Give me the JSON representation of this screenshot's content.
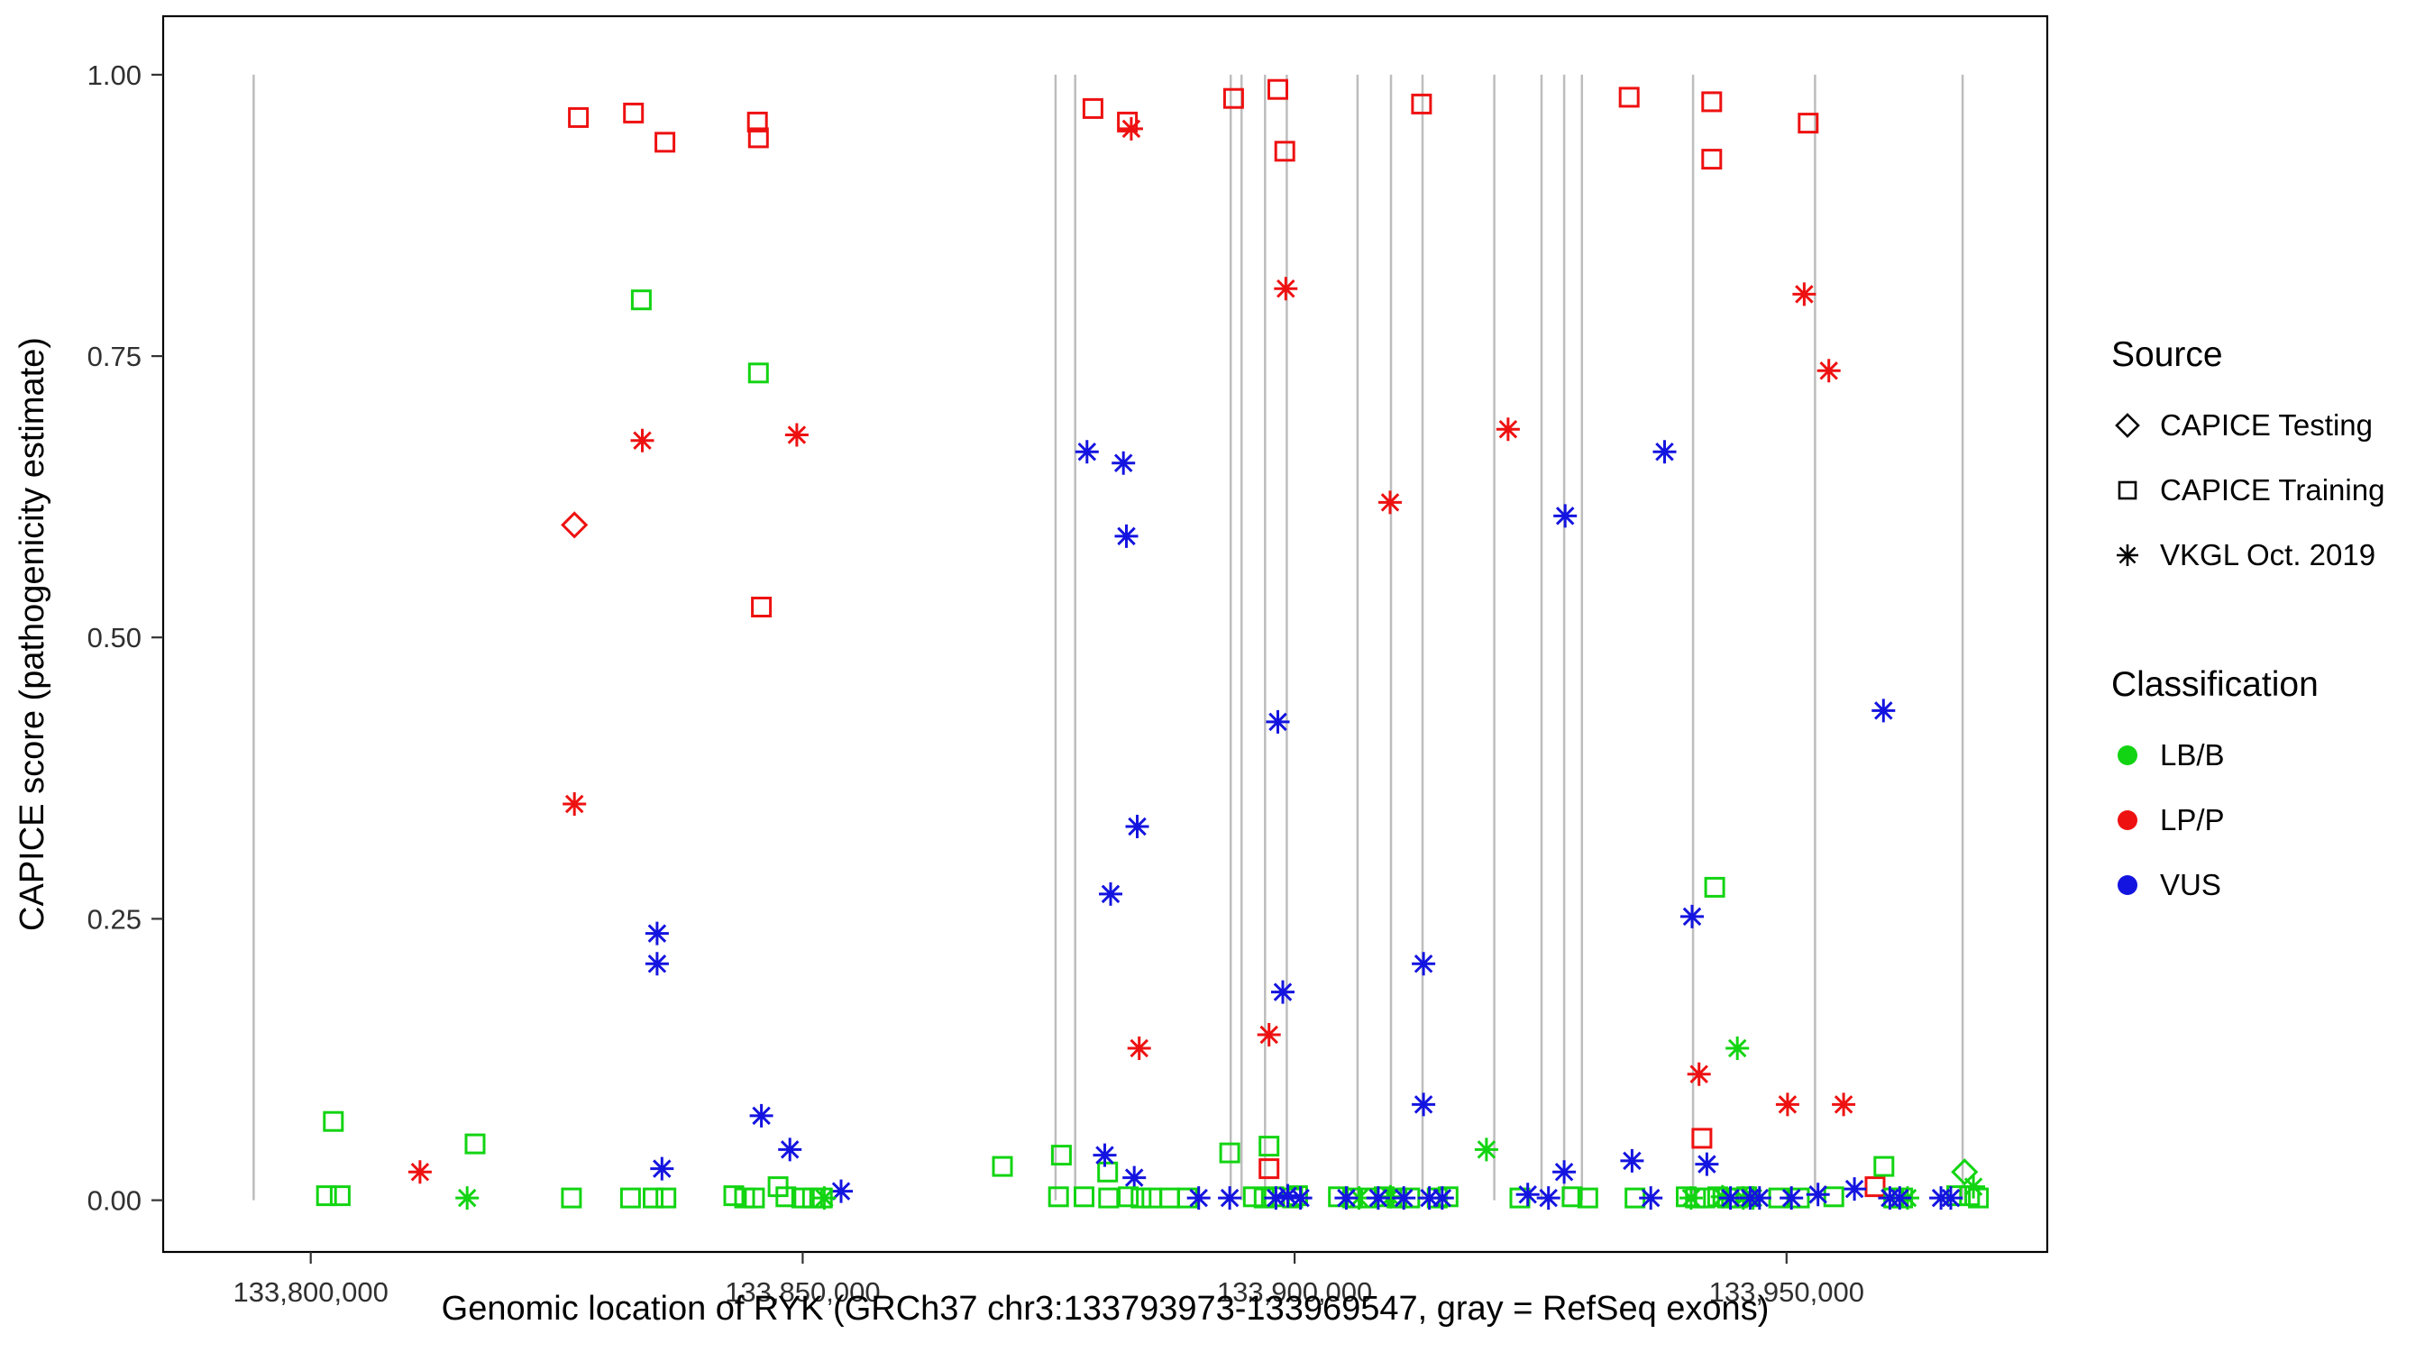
{
  "figure": {
    "colors": {
      "lbb": "#12d412",
      "lpp": "#ee1111",
      "vus": "#1414e0",
      "exon": "#bdbdbd",
      "axis_text": "#303030",
      "title_text": "#000000"
    }
  },
  "chart_data": {
    "type": "scatter",
    "title": "",
    "xlabel": "Genomic location of RYK (GRCh37 chr3:133793973-133969547, gray = RefSeq exons)",
    "ylabel": "CAPICE score (pathogenicity estimate)",
    "xlim": [
      133785000,
      133976500
    ],
    "ylim": [
      -0.046,
      1.052
    ],
    "grid": "off",
    "legend_position": "right",
    "x_ticks": [
      {
        "value": 133800000,
        "label": "133,800,000"
      },
      {
        "value": 133850000,
        "label": "133,850,000"
      },
      {
        "value": 133900000,
        "label": "133,900,000"
      },
      {
        "value": 133950000,
        "label": "133,950,000"
      }
    ],
    "y_ticks": [
      {
        "value": 0.0,
        "label": "0.00"
      },
      {
        "value": 0.25,
        "label": "0.25"
      },
      {
        "value": 0.5,
        "label": "0.50"
      },
      {
        "value": 0.75,
        "label": "0.75"
      },
      {
        "value": 1.0,
        "label": "1.00"
      }
    ],
    "exon_lines": [
      133794200,
      133875700,
      133877700,
      133893500,
      133894600,
      133897000,
      133899200,
      133906400,
      133909800,
      133913000,
      133920300,
      133925100,
      133927400,
      133929200,
      133940500,
      133952900,
      133967900
    ],
    "legend": {
      "source": {
        "title": "Source",
        "items": [
          {
            "label": "CAPICE Testing",
            "marker": "diamond"
          },
          {
            "label": "CAPICE Training",
            "marker": "square"
          },
          {
            "label": "VKGL Oct. 2019",
            "marker": "asterisk"
          }
        ]
      },
      "classification": {
        "title": "Classification",
        "items": [
          {
            "label": "LB/B",
            "color_key": "lbb"
          },
          {
            "label": "LP/P",
            "color_key": "lpp"
          },
          {
            "label": "VUS",
            "color_key": "vus"
          }
        ]
      }
    },
    "points_format": [
      "genomic_position",
      "capice_score",
      "source",
      "classification"
    ],
    "points": [
      [
        133827200,
        0.962,
        "training",
        "lpp"
      ],
      [
        133832800,
        0.966,
        "training",
        "lpp"
      ],
      [
        133836000,
        0.94,
        "training",
        "lpp"
      ],
      [
        133845400,
        0.958,
        "training",
        "lpp"
      ],
      [
        133845500,
        0.944,
        "training",
        "lpp"
      ],
      [
        133879500,
        0.97,
        "training",
        "lpp"
      ],
      [
        133883000,
        0.958,
        "training",
        "lpp"
      ],
      [
        133893800,
        0.979,
        "training",
        "lpp"
      ],
      [
        133898300,
        0.987,
        "training",
        "lpp"
      ],
      [
        133899000,
        0.932,
        "training",
        "lpp"
      ],
      [
        133912900,
        0.974,
        "training",
        "lpp"
      ],
      [
        133934000,
        0.98,
        "training",
        "lpp"
      ],
      [
        133942400,
        0.976,
        "training",
        "lpp"
      ],
      [
        133942400,
        0.925,
        "training",
        "lpp"
      ],
      [
        133952200,
        0.957,
        "training",
        "lpp"
      ],
      [
        133826800,
        0.6,
        "testing",
        "lpp"
      ],
      [
        133826800,
        0.352,
        "vkgl",
        "lpp"
      ],
      [
        133833700,
        0.675,
        "vkgl",
        "lpp"
      ],
      [
        133849400,
        0.68,
        "vkgl",
        "lpp"
      ],
      [
        133883400,
        0.952,
        "vkgl",
        "lpp"
      ],
      [
        133884200,
        0.135,
        "vkgl",
        "lpp"
      ],
      [
        133897400,
        0.147,
        "vkgl",
        "lpp"
      ],
      [
        133899100,
        0.81,
        "vkgl",
        "lpp"
      ],
      [
        133909700,
        0.62,
        "vkgl",
        "lpp"
      ],
      [
        133921700,
        0.685,
        "vkgl",
        "lpp"
      ],
      [
        133941100,
        0.112,
        "vkgl",
        "lpp"
      ],
      [
        133950100,
        0.085,
        "vkgl",
        "lpp"
      ],
      [
        133955800,
        0.085,
        "vkgl",
        "lpp"
      ],
      [
        133951800,
        0.805,
        "vkgl",
        "lpp"
      ],
      [
        133954300,
        0.737,
        "vkgl",
        "lpp"
      ],
      [
        133811100,
        0.025,
        "vkgl",
        "lpp"
      ],
      [
        133845800,
        0.527,
        "training",
        "lpp"
      ],
      [
        133897400,
        0.028,
        "training",
        "lpp"
      ],
      [
        133941400,
        0.055,
        "training",
        "lpp"
      ],
      [
        133959000,
        0.012,
        "training",
        "lpp"
      ],
      [
        133833600,
        0.8,
        "training",
        "lbb"
      ],
      [
        133845500,
        0.735,
        "training",
        "lbb"
      ],
      [
        133942700,
        0.278,
        "training",
        "lbb"
      ],
      [
        133945000,
        0.135,
        "vkgl",
        "lbb"
      ],
      [
        133968100,
        0.025,
        "testing",
        "lbb"
      ],
      [
        133802300,
        0.07,
        "training",
        "lbb"
      ],
      [
        133816700,
        0.05,
        "training",
        "lbb"
      ],
      [
        133870300,
        0.03,
        "training",
        "lbb"
      ],
      [
        133876300,
        0.04,
        "training",
        "lbb"
      ],
      [
        133893400,
        0.042,
        "training",
        "lbb"
      ],
      [
        133897400,
        0.048,
        "training",
        "lbb"
      ],
      [
        133959900,
        0.03,
        "training",
        "lbb"
      ],
      [
        133919500,
        0.045,
        "vkgl",
        "lbb"
      ],
      [
        133881000,
        0.025,
        "training",
        "lbb"
      ],
      [
        133878900,
        0.665,
        "vkgl",
        "vus"
      ],
      [
        133882600,
        0.655,
        "vkgl",
        "vus"
      ],
      [
        133882900,
        0.59,
        "vkgl",
        "vus"
      ],
      [
        133884000,
        0.332,
        "vkgl",
        "vus"
      ],
      [
        133881300,
        0.272,
        "vkgl",
        "vus"
      ],
      [
        133898300,
        0.425,
        "vkgl",
        "vus"
      ],
      [
        133898800,
        0.185,
        "vkgl",
        "vus"
      ],
      [
        133913100,
        0.21,
        "vkgl",
        "vus"
      ],
      [
        133913100,
        0.085,
        "vkgl",
        "vus"
      ],
      [
        133927500,
        0.608,
        "vkgl",
        "vus"
      ],
      [
        133937600,
        0.665,
        "vkgl",
        "vus"
      ],
      [
        133940400,
        0.252,
        "vkgl",
        "vus"
      ],
      [
        133959850,
        0.435,
        "vkgl",
        "vus"
      ],
      [
        133835200,
        0.237,
        "vkgl",
        "vus"
      ],
      [
        133835200,
        0.21,
        "vkgl",
        "vus"
      ],
      [
        133845800,
        0.075,
        "vkgl",
        "vus"
      ],
      [
        133848700,
        0.045,
        "vkgl",
        "vus"
      ],
      [
        133835700,
        0.028,
        "vkgl",
        "vus"
      ],
      [
        133880700,
        0.04,
        "vkgl",
        "vus"
      ],
      [
        133934300,
        0.035,
        "vkgl",
        "vus"
      ],
      [
        133941900,
        0.032,
        "vkgl",
        "vus"
      ],
      [
        133927400,
        0.025,
        "vkgl",
        "vus"
      ],
      [
        133883700,
        0.02,
        "vkgl",
        "vus"
      ],
      [
        133956900,
        0.01,
        "vkgl",
        "vus"
      ],
      [
        133853900,
        0.008,
        "vkgl",
        "vus"
      ],
      [
        133801600,
        0.004,
        "training",
        "lbb"
      ],
      [
        133803000,
        0.004,
        "training",
        "lbb"
      ],
      [
        133826500,
        0.002,
        "training",
        "lbb"
      ],
      [
        133832500,
        0.002,
        "training",
        "lbb"
      ],
      [
        133834800,
        0.002,
        "training",
        "lbb"
      ],
      [
        133836100,
        0.002,
        "training",
        "lbb"
      ],
      [
        133843000,
        0.004,
        "training",
        "lbb"
      ],
      [
        133844100,
        0.002,
        "training",
        "lbb"
      ],
      [
        133845100,
        0.002,
        "training",
        "lbb"
      ],
      [
        133847500,
        0.012,
        "training",
        "lbb"
      ],
      [
        133848300,
        0.003,
        "training",
        "lbb"
      ],
      [
        133849900,
        0.002,
        "training",
        "lbb"
      ],
      [
        133851000,
        0.002,
        "training",
        "lbb"
      ],
      [
        133852000,
        0.002,
        "training",
        "lbb"
      ],
      [
        133876000,
        0.003,
        "training",
        "lbb"
      ],
      [
        133878600,
        0.003,
        "training",
        "lbb"
      ],
      [
        133881100,
        0.002,
        "training",
        "lbb"
      ],
      [
        133883100,
        0.003,
        "training",
        "lbb"
      ],
      [
        133884400,
        0.002,
        "training",
        "lbb"
      ],
      [
        133885500,
        0.002,
        "training",
        "lbb"
      ],
      [
        133887300,
        0.002,
        "training",
        "lbb"
      ],
      [
        133889100,
        0.002,
        "training",
        "lbb"
      ],
      [
        133895800,
        0.003,
        "training",
        "lbb"
      ],
      [
        133896900,
        0.002,
        "training",
        "lbb"
      ],
      [
        133897900,
        0.003,
        "training",
        "lbb"
      ],
      [
        133899800,
        0.002,
        "training",
        "lbb"
      ],
      [
        133900300,
        0.004,
        "training",
        "lbb"
      ],
      [
        133904450,
        0.003,
        "training",
        "lbb"
      ],
      [
        133905900,
        0.002,
        "training",
        "lbb"
      ],
      [
        133907500,
        0.002,
        "training",
        "lbb"
      ],
      [
        133909100,
        0.003,
        "training",
        "lbb"
      ],
      [
        133910400,
        0.002,
        "training",
        "lbb"
      ],
      [
        133911700,
        0.002,
        "training",
        "lbb"
      ],
      [
        133914500,
        0.002,
        "training",
        "lbb"
      ],
      [
        133915600,
        0.003,
        "training",
        "lbb"
      ],
      [
        133922900,
        0.002,
        "training",
        "lbb"
      ],
      [
        133928200,
        0.003,
        "training",
        "lbb"
      ],
      [
        133929800,
        0.002,
        "training",
        "lbb"
      ],
      [
        133934600,
        0.002,
        "training",
        "lbb"
      ],
      [
        133939800,
        0.003,
        "training",
        "lbb"
      ],
      [
        133940750,
        0.002,
        "training",
        "lbb"
      ],
      [
        133941700,
        0.002,
        "training",
        "lbb"
      ],
      [
        133943000,
        0.003,
        "training",
        "lbb"
      ],
      [
        133944000,
        0.002,
        "training",
        "lbb"
      ],
      [
        133945000,
        0.002,
        "training",
        "lbb"
      ],
      [
        133945950,
        0.003,
        "training",
        "lbb"
      ],
      [
        133949200,
        0.002,
        "training",
        "lbb"
      ],
      [
        133951300,
        0.002,
        "training",
        "lbb"
      ],
      [
        133954800,
        0.003,
        "training",
        "lbb"
      ],
      [
        133960900,
        0.002,
        "training",
        "lbb"
      ],
      [
        133961800,
        0.002,
        "training",
        "lbb"
      ],
      [
        133967300,
        0.004,
        "training",
        "lbb"
      ],
      [
        133968600,
        0.004,
        "training",
        "lbb"
      ],
      [
        133969500,
        0.002,
        "training",
        "lbb"
      ],
      [
        133815900,
        0.002,
        "vkgl",
        "lbb"
      ],
      [
        133852200,
        0.002,
        "vkgl",
        "lbb"
      ],
      [
        133906550,
        0.002,
        "vkgl",
        "lbb"
      ],
      [
        133909750,
        0.003,
        "vkgl",
        "lbb"
      ],
      [
        133940300,
        0.002,
        "vkgl",
        "lbb"
      ],
      [
        133943500,
        0.003,
        "vkgl",
        "lbb"
      ],
      [
        133945600,
        0.002,
        "vkgl",
        "lbb"
      ],
      [
        133946600,
        0.002,
        "vkgl",
        "lbb"
      ],
      [
        133962300,
        0.002,
        "vkgl",
        "lbb"
      ],
      [
        133969000,
        0.012,
        "vkgl",
        "lbb"
      ],
      [
        133890250,
        0.002,
        "vkgl",
        "vus"
      ],
      [
        133893400,
        0.002,
        "vkgl",
        "vus"
      ],
      [
        133898100,
        0.002,
        "vkgl",
        "vus"
      ],
      [
        133899300,
        0.004,
        "vkgl",
        "vus"
      ],
      [
        133900600,
        0.002,
        "vkgl",
        "vus"
      ],
      [
        133905250,
        0.002,
        "vkgl",
        "vus"
      ],
      [
        133908500,
        0.002,
        "vkgl",
        "vus"
      ],
      [
        133911100,
        0.002,
        "vkgl",
        "vus"
      ],
      [
        133913700,
        0.002,
        "vkgl",
        "vus"
      ],
      [
        133915000,
        0.002,
        "vkgl",
        "vus"
      ],
      [
        133923700,
        0.005,
        "vkgl",
        "vus"
      ],
      [
        133925800,
        0.002,
        "vkgl",
        "vus"
      ],
      [
        133936200,
        0.002,
        "vkgl",
        "vus"
      ],
      [
        133944300,
        0.002,
        "vkgl",
        "vus"
      ],
      [
        133946300,
        0.002,
        "vkgl",
        "vus"
      ],
      [
        133947250,
        0.002,
        "vkgl",
        "vus"
      ],
      [
        133950500,
        0.002,
        "vkgl",
        "vus"
      ],
      [
        133953200,
        0.005,
        "vkgl",
        "vus"
      ],
      [
        133960500,
        0.002,
        "vkgl",
        "vus"
      ],
      [
        133961500,
        0.002,
        "vkgl",
        "vus"
      ],
      [
        133965700,
        0.002,
        "vkgl",
        "vus"
      ],
      [
        133966700,
        0.002,
        "vkgl",
        "vus"
      ]
    ]
  }
}
